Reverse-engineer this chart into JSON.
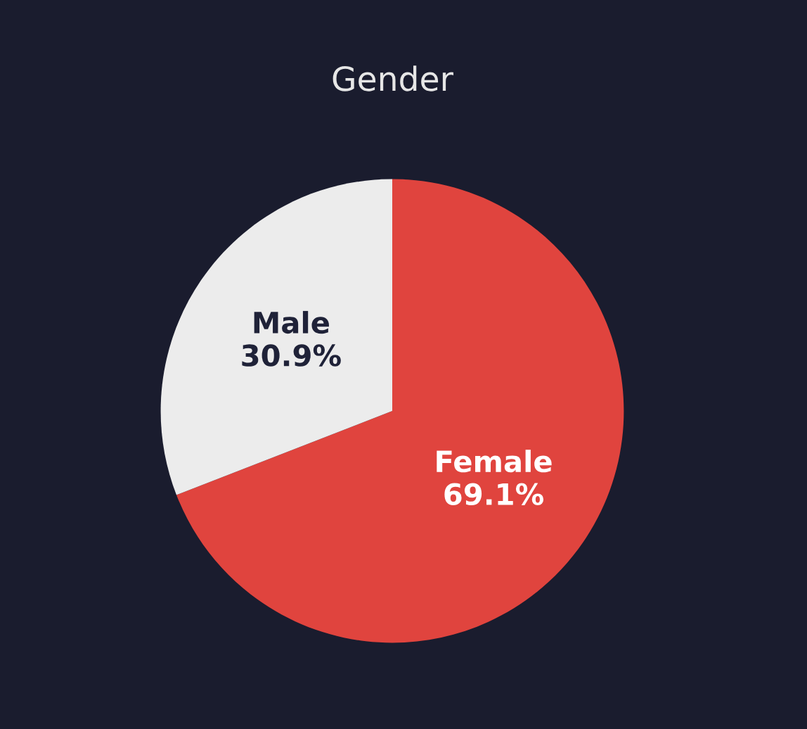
{
  "chart_data": {
    "type": "pie",
    "title": "Gender",
    "categories": [
      "Female",
      "Male"
    ],
    "values": [
      69.1,
      30.9
    ],
    "value_labels": [
      "69.1%",
      "30.9%"
    ],
    "colors": [
      "#e0443e",
      "#ececec"
    ]
  }
}
